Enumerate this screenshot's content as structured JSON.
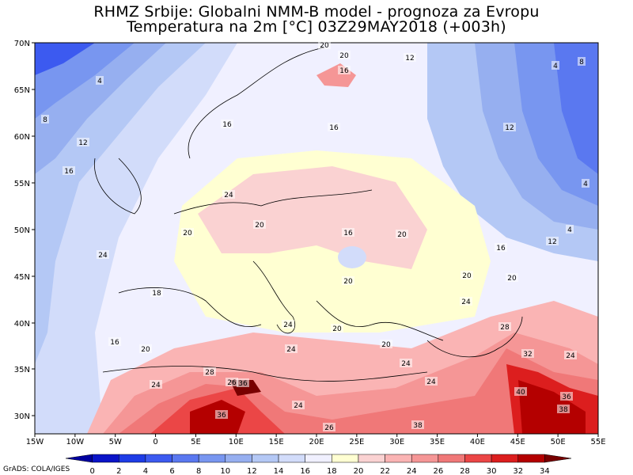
{
  "title_line1": "RHMZ Srbije: Globalni NMM-B model - prognoza za Evropu",
  "title_line2": "Temperatura na 2m [°C] 03Z29MAY2018 (+003h)",
  "credit": "GrADS: COLA/IGES",
  "lat_labels": [
    "70N",
    "65N",
    "60N",
    "55N",
    "50N",
    "45N",
    "40N",
    "35N",
    "30N"
  ],
  "lon_labels": [
    "15W",
    "10W",
    "5W",
    "0",
    "5E",
    "10E",
    "15E",
    "20E",
    "25E",
    "30E",
    "35E",
    "40E",
    "45E",
    "50E",
    "55E"
  ],
  "colorbar": {
    "ticks": [
      "0",
      "2",
      "4",
      "6",
      "8",
      "10",
      "12",
      "14",
      "16",
      "18",
      "20",
      "22",
      "24",
      "26",
      "28",
      "30",
      "32",
      "34"
    ],
    "colors": [
      "#0000a0",
      "#0a14c8",
      "#1e3ce6",
      "#3c5af0",
      "#5a78f0",
      "#7896f0",
      "#96aff0",
      "#b4c8f5",
      "#d2dcfa",
      "#f0f0ff",
      "#ffffd2",
      "#fad2d2",
      "#fab4b4",
      "#f59696",
      "#f07878",
      "#eb4646",
      "#dc1e1e",
      "#b40000",
      "#780000"
    ]
  },
  "contour_labels": [
    {
      "text": "4"
    },
    {
      "text": "8"
    },
    {
      "text": "12"
    },
    {
      "text": "16"
    },
    {
      "text": "16"
    },
    {
      "text": "20"
    },
    {
      "text": "20"
    },
    {
      "text": "16"
    },
    {
      "text": "12"
    },
    {
      "text": "4"
    },
    {
      "text": "12"
    },
    {
      "text": "4"
    },
    {
      "text": "16"
    },
    {
      "text": "20"
    },
    {
      "text": "24"
    },
    {
      "text": "20"
    },
    {
      "text": "16"
    },
    {
      "text": "20"
    },
    {
      "text": "20"
    },
    {
      "text": "12"
    },
    {
      "text": "4"
    },
    {
      "text": "20"
    },
    {
      "text": "16"
    },
    {
      "text": "18"
    },
    {
      "text": "24"
    },
    {
      "text": "20"
    },
    {
      "text": "24"
    },
    {
      "text": "24"
    },
    {
      "text": "28"
    },
    {
      "text": "24"
    },
    {
      "text": "20"
    },
    {
      "text": "24"
    },
    {
      "text": "28"
    },
    {
      "text": "32"
    },
    {
      "text": "24"
    },
    {
      "text": "24"
    },
    {
      "text": "36"
    },
    {
      "text": "24"
    },
    {
      "text": "26"
    },
    {
      "text": "36"
    },
    {
      "text": "38"
    },
    {
      "text": "40"
    },
    {
      "text": "36"
    },
    {
      "text": "38"
    },
    {
      "text": "8"
    },
    {
      "text": "20"
    },
    {
      "text": "20"
    },
    {
      "text": "16"
    },
    {
      "text": "26"
    },
    {
      "text": "24"
    }
  ]
}
